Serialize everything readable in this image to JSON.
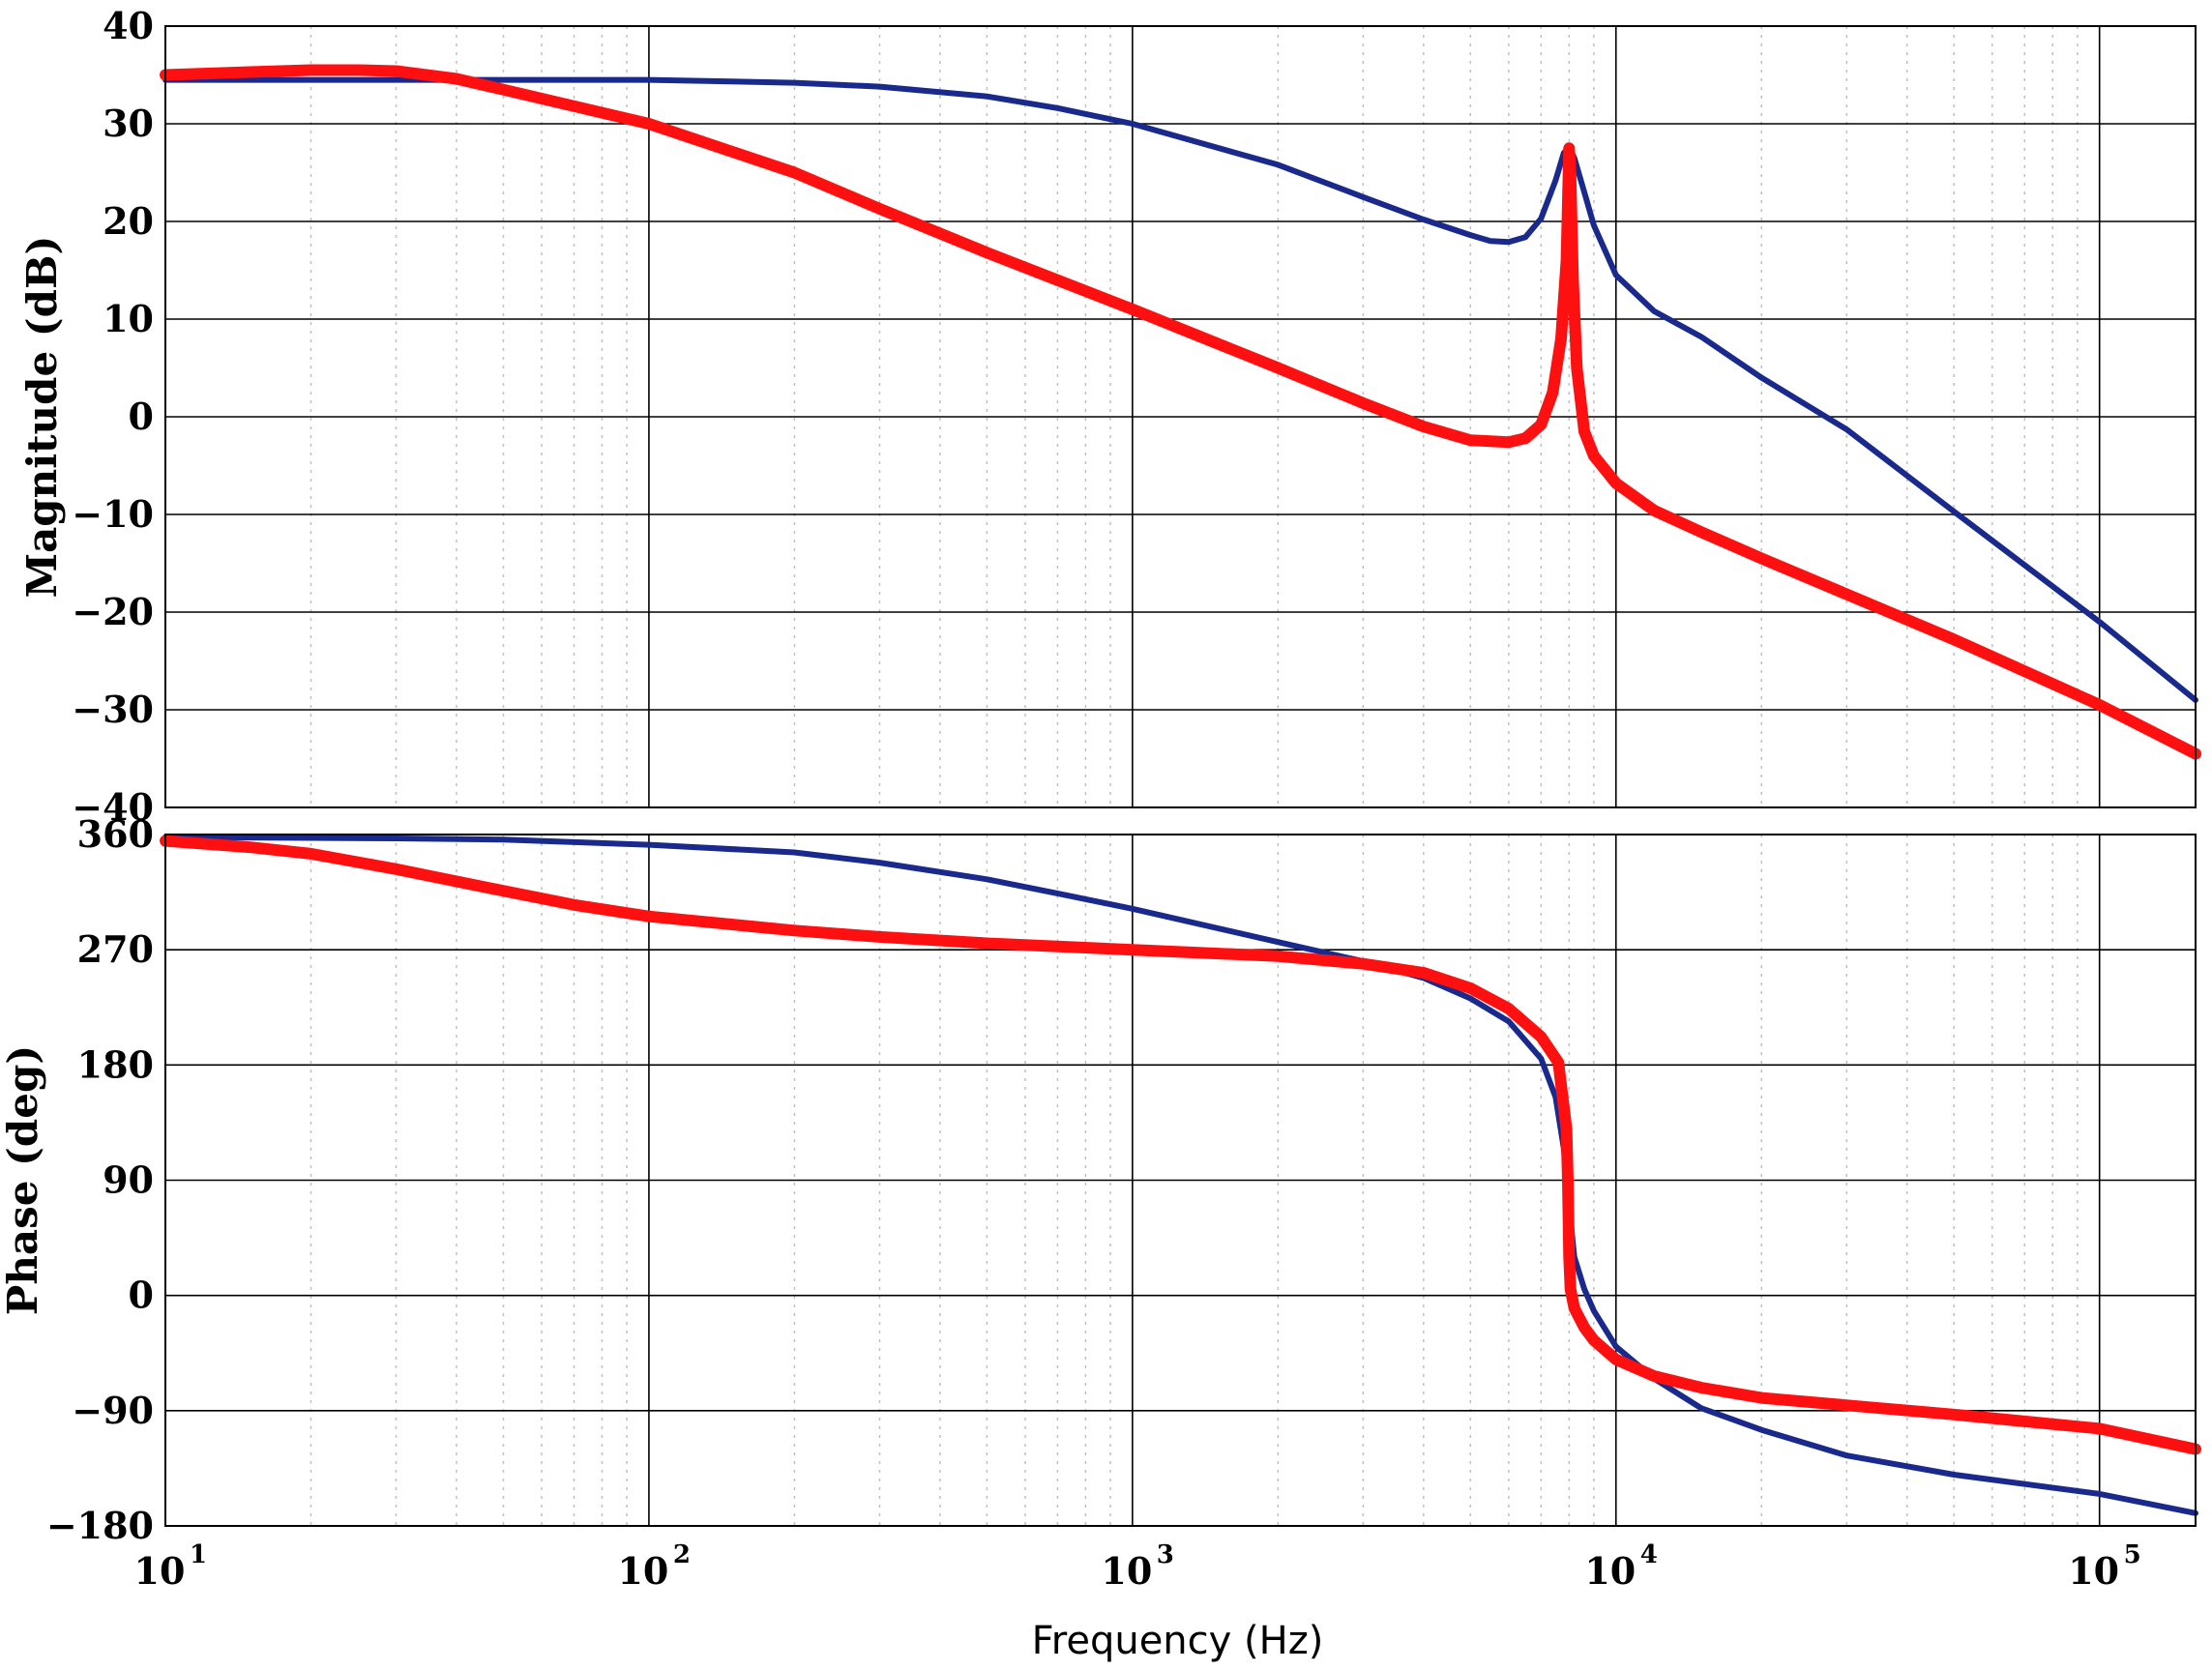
{
  "chart_data": [
    {
      "type": "line",
      "panel": "magnitude",
      "ylabel": "Magnitude (dB)",
      "xscale": "log",
      "xlim": [
        10,
        158000
      ],
      "ylim": [
        -40,
        40
      ],
      "yticks": [
        40,
        30,
        20,
        10,
        0,
        -10,
        -20,
        -30,
        -40
      ],
      "ytick_labels": [
        "40",
        "30",
        "20",
        "10",
        "0",
        "−10",
        "−20",
        "−30",
        "−40"
      ],
      "grid": true,
      "series": [
        {
          "color": "#1a2a8c",
          "points": [
            [
              10,
              34.5
            ],
            [
              30,
              34.5
            ],
            [
              100,
              34.5
            ],
            [
              200,
              34.2
            ],
            [
              300,
              33.8
            ],
            [
              500,
              32.8
            ],
            [
              700,
              31.6
            ],
            [
              1000,
              30.0
            ],
            [
              2000,
              25.8
            ],
            [
              3000,
              22.5
            ],
            [
              4000,
              20.2
            ],
            [
              5000,
              18.6
            ],
            [
              5500,
              18.0
            ],
            [
              6000,
              17.9
            ],
            [
              6500,
              18.4
            ],
            [
              7000,
              20.3
            ],
            [
              7500,
              24.2
            ],
            [
              7800,
              27.0
            ],
            [
              8000,
              27.6
            ],
            [
              8200,
              26.5
            ],
            [
              8600,
              23.0
            ],
            [
              9000,
              19.6
            ],
            [
              10000,
              14.5
            ],
            [
              12000,
              10.8
            ],
            [
              15000,
              8.2
            ],
            [
              20000,
              4.0
            ],
            [
              30000,
              -1.3
            ],
            [
              50000,
              -9.7
            ],
            [
              100000,
              -21.0
            ],
            [
              158000,
              -29.0
            ]
          ]
        },
        {
          "color": "#ff1010",
          "points": [
            [
              10,
              35.0
            ],
            [
              15,
              35.3
            ],
            [
              20,
              35.5
            ],
            [
              25,
              35.5
            ],
            [
              30,
              35.4
            ],
            [
              40,
              34.6
            ],
            [
              50,
              33.5
            ],
            [
              70,
              31.8
            ],
            [
              100,
              30.0
            ],
            [
              200,
              25.0
            ],
            [
              300,
              21.3
            ],
            [
              500,
              16.8
            ],
            [
              1000,
              11.0
            ],
            [
              2000,
              5.0
            ],
            [
              3000,
              1.4
            ],
            [
              4000,
              -1.0
            ],
            [
              5000,
              -2.4
            ],
            [
              6000,
              -2.6
            ],
            [
              6500,
              -2.2
            ],
            [
              7000,
              -0.8
            ],
            [
              7400,
              2.5
            ],
            [
              7700,
              8.0
            ],
            [
              7900,
              16.0
            ],
            [
              8000,
              27.5
            ],
            [
              8050,
              25.0
            ],
            [
              8150,
              14.0
            ],
            [
              8300,
              5.0
            ],
            [
              8600,
              -1.5
            ],
            [
              9000,
              -4.0
            ],
            [
              10000,
              -6.8
            ],
            [
              12000,
              -9.6
            ],
            [
              15000,
              -11.8
            ],
            [
              20000,
              -14.5
            ],
            [
              50000,
              -22.8
            ],
            [
              100000,
              -29.5
            ],
            [
              158000,
              -34.5
            ]
          ]
        }
      ]
    },
    {
      "type": "line",
      "panel": "phase",
      "ylabel": "Phase (deg)",
      "xlabel": "Frequency  (Hz)",
      "xscale": "log",
      "xlim": [
        10,
        158000
      ],
      "ylim": [
        -180,
        360
      ],
      "yticks": [
        360,
        270,
        180,
        90,
        0,
        -90,
        -180
      ],
      "ytick_labels": [
        "360",
        "270",
        "180",
        "90",
        "0",
        "−90",
        "−180"
      ],
      "xticks": [
        10,
        100,
        1000,
        10000,
        100000
      ],
      "xtick_labels": [
        {
          "base": "10",
          "exp": "1"
        },
        {
          "base": "10",
          "exp": "2"
        },
        {
          "base": "10",
          "exp": "3"
        },
        {
          "base": "10",
          "exp": "4"
        },
        {
          "base": "10",
          "exp": "5"
        }
      ],
      "grid": true,
      "series": [
        {
          "color": "#1a2a8c",
          "points": [
            [
              10,
              358
            ],
            [
              30,
              357
            ],
            [
              50,
              356
            ],
            [
              100,
              352
            ],
            [
              200,
              346
            ],
            [
              300,
              338
            ],
            [
              500,
              325
            ],
            [
              700,
              314
            ],
            [
              1000,
              302
            ],
            [
              2000,
              276
            ],
            [
              3000,
              261
            ],
            [
              4000,
              248
            ],
            [
              5000,
              232
            ],
            [
              6000,
              214
            ],
            [
              7000,
              185
            ],
            [
              7500,
              155
            ],
            [
              7800,
              115
            ],
            [
              8000,
              70
            ],
            [
              8200,
              30
            ],
            [
              8600,
              5
            ],
            [
              9000,
              -12
            ],
            [
              10000,
              -40
            ],
            [
              12000,
              -65
            ],
            [
              15000,
              -88
            ],
            [
              20000,
              -105
            ],
            [
              30000,
              -125
            ],
            [
              50000,
              -140
            ],
            [
              100000,
              -155
            ],
            [
              158000,
              -170
            ]
          ]
        },
        {
          "color": "#ff1010",
          "points": [
            [
              10,
              355
            ],
            [
              15,
              350
            ],
            [
              20,
              345
            ],
            [
              30,
              333
            ],
            [
              50,
              316
            ],
            [
              70,
              305
            ],
            [
              100,
              296
            ],
            [
              200,
              285
            ],
            [
              300,
              280
            ],
            [
              500,
              275
            ],
            [
              1000,
              270
            ],
            [
              2000,
              265
            ],
            [
              3000,
              259
            ],
            [
              4000,
              252
            ],
            [
              5000,
              240
            ],
            [
              6000,
              224
            ],
            [
              7000,
              202
            ],
            [
              7600,
              182
            ],
            [
              7900,
              130
            ],
            [
              7950,
              90
            ],
            [
              8000,
              30
            ],
            [
              8050,
              5
            ],
            [
              8200,
              -10
            ],
            [
              8600,
              -25
            ],
            [
              9000,
              -35
            ],
            [
              10000,
              -50
            ],
            [
              12000,
              -63
            ],
            [
              15000,
              -72
            ],
            [
              20000,
              -80
            ],
            [
              50000,
              -93
            ],
            [
              100000,
              -104
            ],
            [
              158000,
              -120
            ]
          ]
        }
      ]
    }
  ]
}
